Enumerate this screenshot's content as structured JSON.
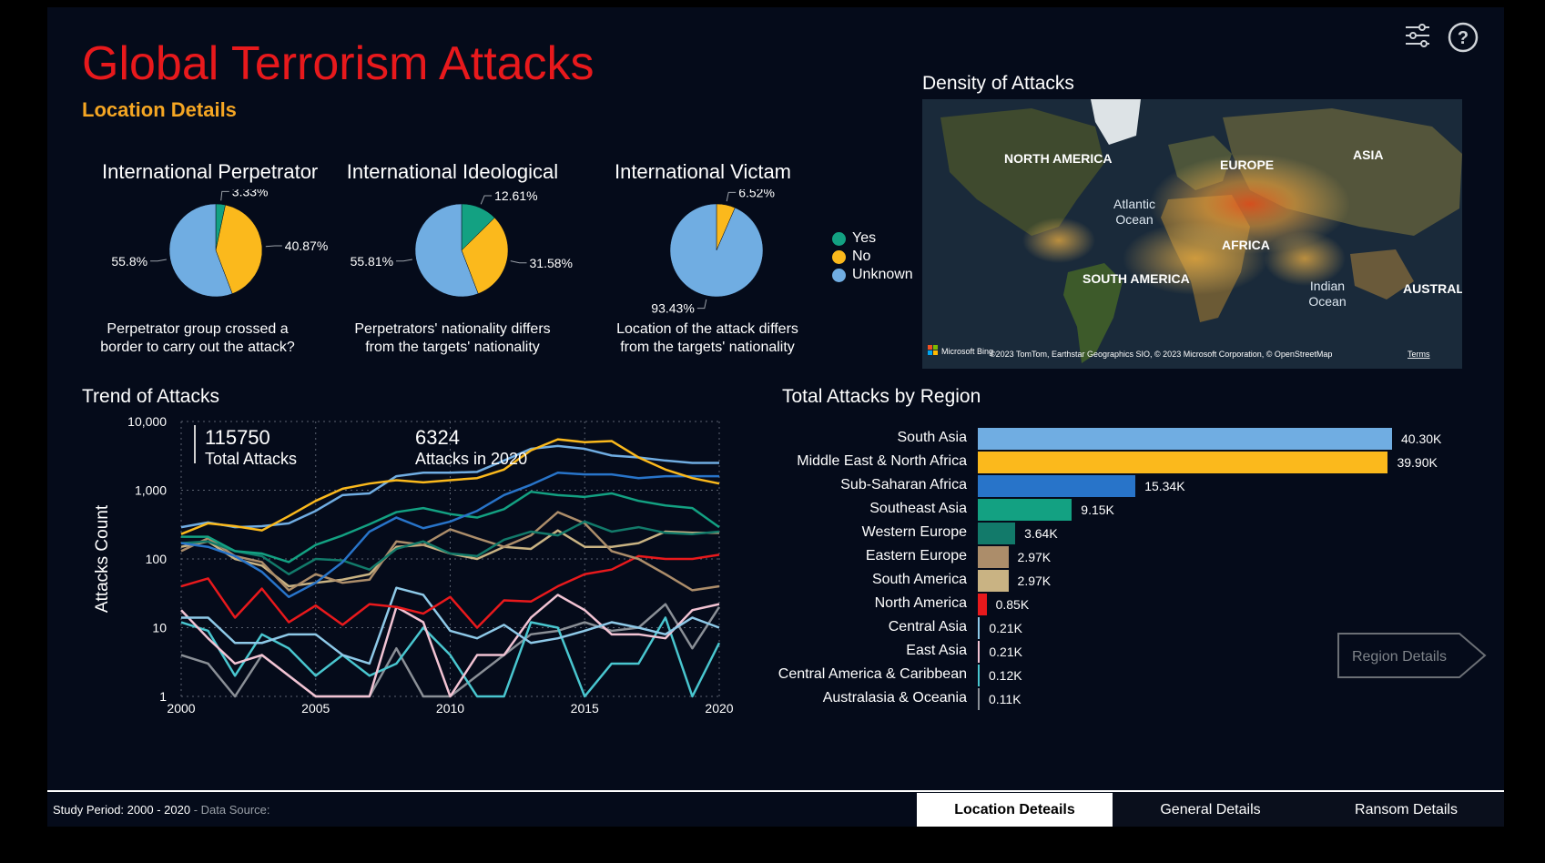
{
  "header": {
    "title": "Global Terrorism Attacks",
    "subtitle": "Location Details"
  },
  "colors": {
    "yes": "#13a182",
    "no": "#fbb91c",
    "unknown": "#70ade2",
    "title": "#e8191c",
    "subtitle": "#f5a623"
  },
  "icons": {
    "filter": "sliders-icon",
    "help": "help-icon"
  },
  "pies": [
    {
      "title": "International Perpetrator",
      "desc_line1": "Perpetrator group crossed a",
      "desc_line2": "border to carry out the attack?",
      "slices": [
        {
          "label": "Yes",
          "value": 3.33,
          "text": "3.33%"
        },
        {
          "label": "No",
          "value": 40.87,
          "text": "40.87%"
        },
        {
          "label": "Unknown",
          "value": 55.8,
          "text": "55.8%"
        }
      ]
    },
    {
      "title": "International Ideological",
      "desc_line1": "Perpetrators' nationality differs",
      "desc_line2": "from the targets' nationality",
      "slices": [
        {
          "label": "Yes",
          "value": 12.61,
          "text": "12.61%"
        },
        {
          "label": "No",
          "value": 31.58,
          "text": "31.58%"
        },
        {
          "label": "Unknown",
          "value": 55.81,
          "text": "55.81%"
        }
      ]
    },
    {
      "title": "International Victam",
      "desc_line1": "Location of the attack differs",
      "desc_line2": "from the targets' nationality",
      "slices": [
        {
          "label": "No",
          "value": 6.52,
          "text": "6.52%"
        },
        {
          "label": "Unknown",
          "value": 93.43,
          "text": "93.43%"
        }
      ]
    }
  ],
  "legend": {
    "yes": "Yes",
    "no": "No",
    "unknown": "Unknown"
  },
  "map": {
    "title": "Density of Attacks",
    "labels": {
      "north_america": "NORTH AMERICA",
      "europe": "EUROPE",
      "asia": "ASIA",
      "africa": "AFRICA",
      "south_america": "SOUTH AMERICA",
      "australia": "AUSTRAL"
    },
    "oceans": {
      "atlantic_1": "Atlantic",
      "atlantic_2": "Ocean",
      "indian_1": "Indian",
      "indian_2": "Ocean"
    },
    "brand": "Microsoft Bing",
    "attribution": "©2023 TomTom, Earthstar Geographics SIO, © 2023 Microsoft Corporation, © OpenStreetMap",
    "terms": "Terms"
  },
  "trend": {
    "title": "Trend of Attacks",
    "ylabel": "Attacks Count",
    "kpi_total_value": "115750",
    "kpi_total_label": "Total Attacks",
    "kpi_2020_value": "6324",
    "kpi_2020_label": "Attacks in 2020",
    "y_ticks": [
      "1",
      "10",
      "100",
      "1,000",
      "10,000"
    ],
    "x_ticks": [
      "2000",
      "2005",
      "2010",
      "2015",
      "2020"
    ]
  },
  "chart_data": {
    "type": "line",
    "title": "Trend of Attacks",
    "xlabel": "",
    "ylabel": "Attacks Count",
    "yscale": "log",
    "ylim": [
      1,
      10000
    ],
    "xlim": [
      2000,
      2020
    ],
    "x": [
      2000,
      2001,
      2002,
      2003,
      2004,
      2005,
      2006,
      2007,
      2008,
      2009,
      2010,
      2011,
      2012,
      2013,
      2014,
      2015,
      2016,
      2017,
      2018,
      2019,
      2020
    ],
    "series": [
      {
        "name": "Middle East & North Africa",
        "color": "#fbb91c",
        "values": [
          230,
          330,
          300,
          260,
          420,
          700,
          1050,
          1250,
          1400,
          1300,
          1400,
          1500,
          2000,
          3800,
          5500,
          5000,
          5200,
          3000,
          2000,
          1500,
          1250
        ]
      },
      {
        "name": "South Asia",
        "color": "#70ade2",
        "values": [
          290,
          340,
          290,
          300,
          330,
          500,
          850,
          900,
          1600,
          1800,
          1800,
          1850,
          2700,
          4000,
          4400,
          4000,
          3200,
          3000,
          2700,
          2500,
          2500
        ]
      },
      {
        "name": "Sub-Saharan Africa",
        "color": "#2874c9",
        "values": [
          170,
          150,
          110,
          65,
          28,
          45,
          90,
          250,
          400,
          280,
          350,
          500,
          850,
          1200,
          1800,
          1700,
          1700,
          1500,
          1600,
          1600,
          1600
        ]
      },
      {
        "name": "Southeast Asia",
        "color": "#13a182",
        "values": [
          210,
          210,
          130,
          120,
          90,
          160,
          220,
          320,
          480,
          550,
          450,
          400,
          530,
          950,
          850,
          800,
          900,
          700,
          600,
          550,
          290
        ]
      },
      {
        "name": "Western Europe",
        "color": "#127a6a",
        "values": [
          170,
          180,
          130,
          110,
          60,
          100,
          95,
          70,
          140,
          180,
          120,
          110,
          190,
          250,
          220,
          350,
          250,
          290,
          240,
          230,
          250
        ]
      },
      {
        "name": "Eastern Europe",
        "color": "#ac8d6a",
        "values": [
          130,
          200,
          110,
          90,
          35,
          60,
          45,
          50,
          180,
          160,
          270,
          200,
          150,
          220,
          480,
          330,
          130,
          100,
          60,
          35,
          40
        ]
      },
      {
        "name": "South America",
        "color": "#c9b383",
        "values": [
          150,
          180,
          100,
          80,
          40,
          45,
          50,
          60,
          150,
          160,
          120,
          100,
          150,
          140,
          260,
          150,
          150,
          170,
          250,
          240,
          240
        ]
      },
      {
        "name": "North America",
        "color": "#e8191c",
        "values": [
          40,
          52,
          14,
          37,
          12,
          21,
          11,
          22,
          20,
          16,
          28,
          10,
          25,
          24,
          40,
          60,
          70,
          110,
          100,
          100,
          115
        ]
      },
      {
        "name": "Central Asia",
        "color": "#8ec9e8",
        "values": [
          14,
          14,
          6,
          6,
          8,
          8,
          4,
          3,
          38,
          30,
          9,
          7,
          11,
          6,
          7,
          9,
          12,
          10,
          8,
          14,
          10
        ]
      },
      {
        "name": "East Asia",
        "color": "#f2c3d3",
        "values": [
          18,
          7,
          3,
          4,
          2,
          1,
          1,
          1,
          20,
          12,
          1,
          4,
          4,
          14,
          30,
          18,
          8,
          8,
          7,
          18,
          22
        ]
      },
      {
        "name": "Central America & Caribbean",
        "color": "#49c6cf",
        "values": [
          12,
          9,
          2,
          8,
          5,
          2,
          4,
          2,
          3,
          10,
          4,
          1,
          1,
          12,
          10,
          1,
          3,
          3,
          14,
          1,
          6
        ]
      },
      {
        "name": "Australasia & Oceania",
        "color": "#8a8f96",
        "values": [
          4,
          3,
          1,
          4,
          2,
          1,
          1,
          1,
          5,
          1,
          1,
          2,
          4,
          8,
          9,
          12,
          9,
          10,
          22,
          5,
          20
        ]
      }
    ]
  },
  "regions": {
    "title": "Total Attacks by Region",
    "button_label": "Region Details",
    "items": [
      {
        "name": "South Asia",
        "value": 40.3,
        "text": "40.30K",
        "color": "#70ade2"
      },
      {
        "name": "Middle East & North Africa",
        "value": 39.9,
        "text": "39.90K",
        "color": "#fbb91c"
      },
      {
        "name": "Sub-Saharan Africa",
        "value": 15.34,
        "text": "15.34K",
        "color": "#2874c9"
      },
      {
        "name": "Southeast Asia",
        "value": 9.15,
        "text": "9.15K",
        "color": "#13a182"
      },
      {
        "name": "Western Europe",
        "value": 3.64,
        "text": "3.64K",
        "color": "#127a6a"
      },
      {
        "name": "Eastern Europe",
        "value": 2.97,
        "text": "2.97K",
        "color": "#ac8d6a"
      },
      {
        "name": "South America",
        "value": 2.97,
        "text": "2.97K",
        "color": "#c9b383"
      },
      {
        "name": "North America",
        "value": 0.85,
        "text": "0.85K",
        "color": "#e8191c"
      },
      {
        "name": "Central Asia",
        "value": 0.21,
        "text": "0.21K",
        "color": "#8ec9e8"
      },
      {
        "name": "East Asia",
        "value": 0.21,
        "text": "0.21K",
        "color": "#f2c3d3"
      },
      {
        "name": "Central America & Caribbean",
        "value": 0.12,
        "text": "0.12K",
        "color": "#49c6cf"
      },
      {
        "name": "Australasia & Oceania",
        "value": 0.11,
        "text": "0.11K",
        "color": "#8a8f96"
      }
    ]
  },
  "footer": {
    "study": "Study Period: 2000 - 2020",
    "source": "- Data Source:",
    "tabs": [
      "Location Deteails",
      "General Details",
      "Ransom Details"
    ]
  }
}
